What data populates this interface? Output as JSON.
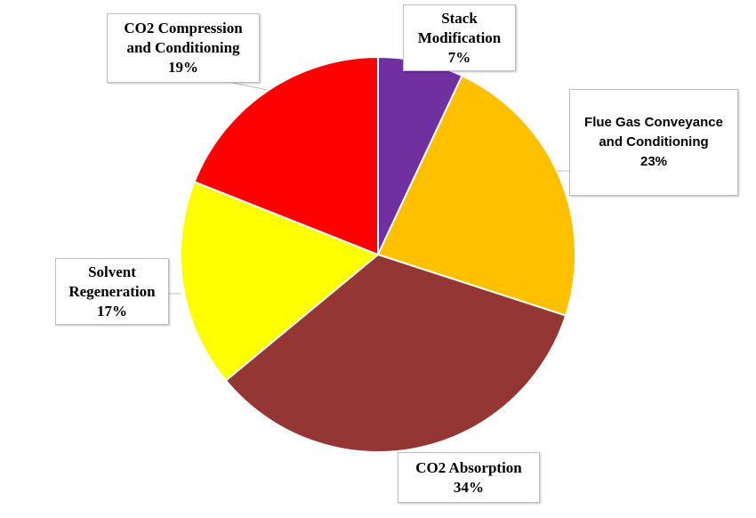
{
  "chart_data": {
    "type": "pie",
    "categories": [
      "Stack Modification",
      "Flue Gas Conveyance and Conditioning",
      "CO2 Absorption",
      "Solvent Regeneration",
      "CO2 Compression and Conditioning"
    ],
    "values": [
      7,
      23,
      34,
      17,
      19
    ],
    "value_labels": [
      "7%",
      "23%",
      "34%",
      "17%",
      "19%"
    ],
    "colors": [
      "#7030a0",
      "#ffc000",
      "#943634",
      "#ffff00",
      "#ff0000"
    ]
  }
}
